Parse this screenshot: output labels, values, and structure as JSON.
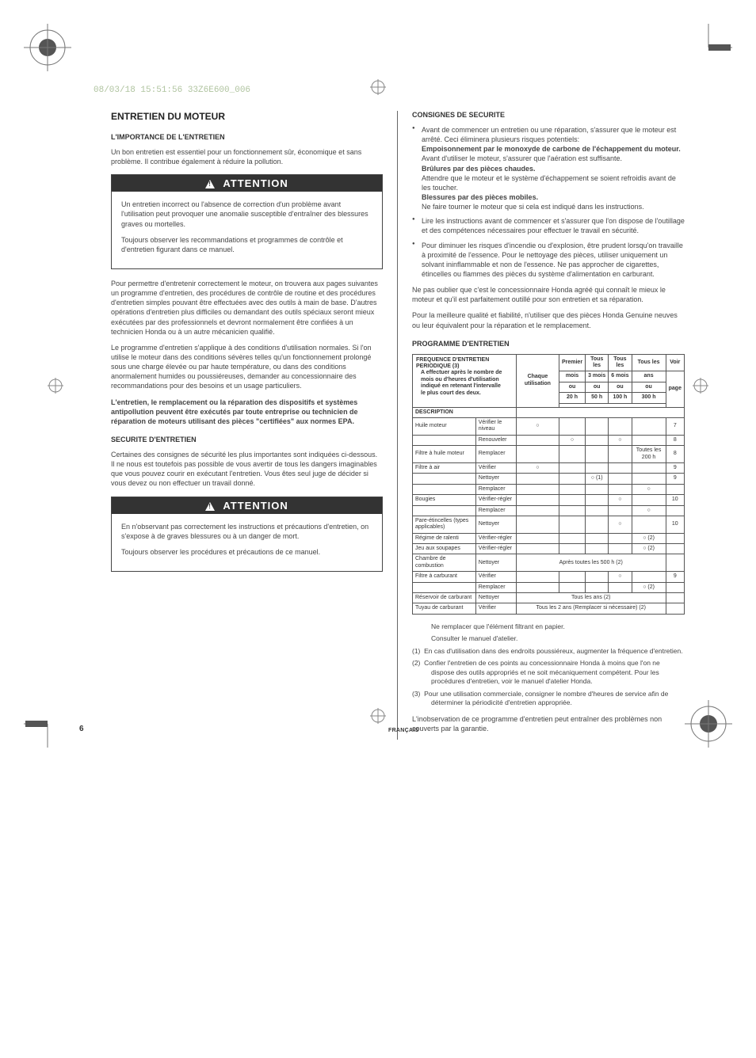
{
  "timestamp": "08/03/18 15:51:56 33Z6E600_006",
  "page_number": "6",
  "language_label": "FRANÇAIS",
  "left": {
    "title": "ENTRETIEN DU MOTEUR",
    "h_importance": "L'IMPORTANCE DE L'ENTRETIEN",
    "p1": "Un bon entretien est essentiel pour un fonctionnement sûr, économique et sans problème. Il contribue également à réduire la pollution.",
    "attention1_head": "ATTENTION",
    "attention1_p1": "Un entretien incorrect ou l'absence de correction d'un problème avant l'utilisation peut provoquer une anomalie susceptible d'entraîner des blessures graves ou mortelles.",
    "attention1_p2": "Toujours observer les recommandations et programmes de contrôle et d'entretien figurant dans ce manuel.",
    "p2": "Pour permettre d'entretenir correctement le moteur, on trouvera aux pages suivantes un programme d'entretien, des procédures de contrôle de routine et des procédures d'entretien simples pouvant être effectuées avec des outils à main de base. D'autres opérations d'entretien plus difficiles ou demandant des outils spéciaux seront mieux exécutées par des professionnels et devront normalement être confiées à un technicien Honda ou à un autre mécanicien qualifié.",
    "p3": "Le programme d'entretien s'applique à des conditions d'utilisation normales. Si l'on utilise le moteur dans des conditions sévères telles qu'un fonctionnement prolongé sous une charge élevée ou par haute température, ou dans des conditions anormalement humides ou poussiéreuses, demander au concessionnaire des recommandations pour des besoins et un usage particuliers.",
    "p4_bold": "L'entretien, le remplacement ou la réparation des dispositifs et systèmes antipollution peuvent être exécutés par toute entreprise ou technicien de réparation de moteurs utilisant des pièces \"certifiées\" aux normes EPA.",
    "h_securite": "SECURITE D'ENTRETIEN",
    "p5": "Certaines des consignes de sécurité les plus importantes sont indiquées ci-dessous. Il ne nous est toutefois pas possible de vous avertir de tous les dangers imaginables que vous pouvez courir en exécutant l'entretien. Vous êtes seul juge de décider si vous devez ou non effectuer un travail donné.",
    "attention2_head": "ATTENTION",
    "attention2_p1": "En n'observant pas correctement les instructions et précautions d'entretien, on s'expose à de graves blessures ou à un danger de mort.",
    "attention2_p2": "Toujours observer les procédures et précautions de ce manuel."
  },
  "right": {
    "h_consignes": "CONSIGNES DE SECURITE",
    "b1_lead": "Avant de commencer un entretien ou une réparation, s'assurer que le moteur est arrêté. Ceci éliminera plusieurs risques potentiels:",
    "b1_s1b": "Empoisonnement par le monoxyde de carbone de l'échappement du moteur.",
    "b1_s1": "Avant d'utiliser le moteur, s'assurer que l'aération est suffisante.",
    "b1_s2b": "Brûlures par des pièces chaudes.",
    "b1_s2": "Attendre que le moteur et le système d'échappement se soient refroidis avant de les toucher.",
    "b1_s3b": "Blessures par des pièces mobiles.",
    "b1_s3": "Ne faire tourner le moteur que si cela est indiqué dans les instructions.",
    "b2": "Lire les instructions avant de commencer et s'assurer que l'on dispose de l'outillage et des compétences nécessaires pour effectuer le travail en sécurité.",
    "b3": "Pour diminuer les risques d'incendie ou d'explosion, être prudent lorsqu'on travaille à proximité de l'essence. Pour le nettoyage des pièces, utiliser uniquement un solvant ininflammable et non de l'essence. Ne pas approcher de cigarettes, étincelles ou flammes des pièces du système d'alimentation en carburant.",
    "p_rem1": "Ne pas oublier que c'est le concessionnaire Honda agréé qui connaît le mieux le moteur et qu'il est parfaitement outillé pour son entretien et sa réparation.",
    "p_rem2": "Pour la meilleure qualité et fiabilité, n'utiliser que des pièces Honda Genuine neuves ou leur équivalent pour la réparation et le remplacement.",
    "h_prog": "PROGRAMME D'ENTRETIEN",
    "table": {
      "header": {
        "freq_l1": "FREQUENCE D'ENTRETIEN PERIODIQUE (3)",
        "freq_l2": "A effectuer après le nombre de",
        "freq_l3": "mois ou d'heures d'utilisation",
        "freq_l4": "indiqué en retenant l'intervalle",
        "freq_l5": "le plus court des deux.",
        "desc": "DESCRIPTION",
        "c1": "Chaque utilisation",
        "c2a": "Premier",
        "c2b": "mois",
        "c2c": "ou",
        "c2d": "20 h",
        "c3a": "Tous les",
        "c3b": "3 mois",
        "c3c": "ou",
        "c3d": "50 h",
        "c4a": "Tous les",
        "c4b": "6 mois",
        "c4c": "ou",
        "c4d": "100 h",
        "c5a": "Tous les",
        "c5b": "ans",
        "c5c": "ou",
        "c5d": "300 h",
        "c6a": "Voir",
        "c6b": "page"
      },
      "rows": [
        {
          "d": "Huile moteur",
          "a": "Vérifier le niveau",
          "c": [
            "○",
            "",
            "",
            "",
            "",
            ""
          ],
          "pg": "7"
        },
        {
          "d": "",
          "a": "Renouveler",
          "c": [
            "",
            "○",
            "",
            "○",
            "",
            ""
          ],
          "pg": "8"
        },
        {
          "d": "Filtre à huile moteur",
          "a": "Remplacer",
          "c": [
            "",
            "",
            "",
            "",
            "Toutes les 200 h",
            ""
          ],
          "pg": "8"
        },
        {
          "d": "Filtre à air",
          "a": "Vérifier",
          "c": [
            "○",
            "",
            "",
            "",
            "",
            ""
          ],
          "pg": "9"
        },
        {
          "d": "",
          "a": "Nettoyer",
          "c": [
            "",
            "",
            "○ (1)",
            "",
            "",
            ""
          ],
          "pg": "9"
        },
        {
          "d": "",
          "a": "Remplacer",
          "c": [
            "",
            "",
            "",
            "",
            "○",
            ""
          ],
          "pg": ""
        },
        {
          "d": "Bougies",
          "a": "Vérifier-régler",
          "c": [
            "",
            "",
            "",
            "○",
            "",
            ""
          ],
          "pg": "10"
        },
        {
          "d": "",
          "a": "Remplacer",
          "c": [
            "",
            "",
            "",
            "",
            "○",
            ""
          ],
          "pg": ""
        },
        {
          "d": "Pare-étincelles (types applicables)",
          "a": "Nettoyer",
          "c": [
            "",
            "",
            "",
            "○",
            "",
            ""
          ],
          "pg": "10"
        },
        {
          "d": "Régime de ralenti",
          "a": "Vérifier-régler",
          "c": [
            "",
            "",
            "",
            "",
            "○ (2)",
            ""
          ],
          "pg": ""
        },
        {
          "d": "Jeu aux soupapes",
          "a": "Vérifier-régler",
          "c": [
            "",
            "",
            "",
            "",
            "○ (2)",
            ""
          ],
          "pg": ""
        },
        {
          "d": "Chambre de combustion",
          "a": "Nettoyer",
          "span": "Après toutes les 500 h (2)",
          "pg": ""
        },
        {
          "d": "Filtre à carburant",
          "a": "Vérifier",
          "c": [
            "",
            "",
            "",
            "○",
            "",
            ""
          ],
          "pg": "9"
        },
        {
          "d": "",
          "a": "Remplacer",
          "c": [
            "",
            "",
            "",
            "",
            "○ (2)",
            ""
          ],
          "pg": ""
        },
        {
          "d": "Réservoir de carburant",
          "a": "Nettoyer",
          "span": "Tous les ans (2)",
          "pg": ""
        },
        {
          "d": "Tuyau de carburant",
          "a": "Vérifier",
          "span": "Tous les 2 ans (Remplacer si nécessaire) (2)",
          "pg": ""
        }
      ]
    },
    "fn_star1": "Ne remplacer que l'élément filtrant en papier.",
    "fn_star2": "Consulter le manuel d'atelier.",
    "fn1_label": "(1)",
    "fn1": "En cas d'utilisation dans des endroits poussiéreux, augmenter la fréquence d'entretien.",
    "fn2_label": "(2)",
    "fn2": "Confier l'entretien de ces points au concessionnaire Honda à moins que l'on ne dispose des outils appropriés et ne soit mécaniquement compétent. Pour les procédures d'entretien, voir le manuel d'atelier Honda.",
    "fn3_label": "(3)",
    "fn3": "Pour une utilisation commerciale, consigner le nombre d'heures de service afin de déterminer la périodicité d'entretien appropriée.",
    "closing": "L'inobservation de ce programme d'entretien peut entraîner des problèmes non couverts par la garantie."
  }
}
